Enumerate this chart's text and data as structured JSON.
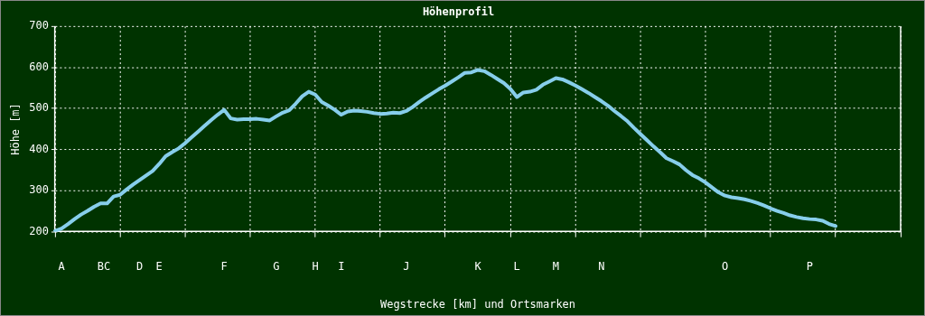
{
  "chart_data": {
    "type": "line",
    "title": "Höhenprofil",
    "xlabel": "Wegstrecke [km] und Ortsmarken",
    "ylabel": "Höhe [m]",
    "categories": [
      null,
      "A",
      null,
      null,
      null,
      null,
      null,
      "B",
      "C",
      null,
      null,
      null,
      null,
      "D",
      null,
      null,
      "E",
      null,
      null,
      null,
      null,
      null,
      null,
      null,
      null,
      null,
      "F",
      null,
      null,
      null,
      null,
      null,
      null,
      null,
      "G",
      null,
      null,
      null,
      null,
      null,
      "H",
      null,
      null,
      null,
      "I",
      null,
      null,
      null,
      null,
      null,
      null,
      null,
      null,
      null,
      "J",
      null,
      null,
      null,
      null,
      null,
      null,
      null,
      null,
      null,
      null,
      "K",
      null,
      null,
      null,
      null,
      null,
      "L",
      null,
      null,
      null,
      null,
      null,
      "M",
      null,
      null,
      null,
      null,
      null,
      null,
      "N",
      null,
      null,
      null,
      null,
      null,
      null,
      null,
      null,
      null,
      null,
      null,
      null,
      null,
      null,
      null,
      null,
      null,
      null,
      "O",
      null,
      null,
      null,
      null,
      null,
      null,
      null,
      null,
      null,
      null,
      null,
      null,
      "P",
      null,
      null,
      null,
      null,
      null,
      null,
      null,
      null,
      null,
      null,
      null,
      null,
      null,
      null
    ],
    "series": [
      {
        "color": "#87ceeb",
        "values": [
          202,
          208,
          219,
          231,
          242,
          251,
          261,
          269,
          269,
          286,
          290,
          303,
          315,
          326,
          337,
          348,
          365,
          384,
          394,
          403,
          416,
          430,
          444,
          458,
          472,
          485,
          497,
          476,
          473,
          474,
          474,
          475,
          473,
          471,
          481,
          490,
          496,
          512,
          530,
          541,
          534,
          516,
          507,
          497,
          485,
          493,
          495,
          494,
          492,
          489,
          487,
          488,
          490,
          489,
          494,
          504,
          516,
          527,
          537,
          547,
          556,
          566,
          576,
          587,
          588,
          594,
          591,
          582,
          572,
          562,
          548,
          528,
          539,
          541,
          546,
          558,
          566,
          574,
          571,
          564,
          556,
          547,
          538,
          528,
          518,
          507,
          494,
          482,
          469,
          453,
          438,
          423,
          408,
          394,
          379,
          372,
          364,
          350,
          338,
          330,
          320,
          308,
          296,
          288,
          284,
          282,
          279,
          275,
          270,
          264,
          257,
          251,
          246,
          240,
          236,
          233,
          231,
          230,
          227,
          219,
          214,
          null,
          null,
          null,
          null,
          null,
          null,
          null,
          null,
          null,
          null
        ]
      }
    ],
    "ylim": [
      200,
      700
    ],
    "yticks": [
      200,
      300,
      400,
      500,
      600,
      700
    ],
    "grid": true,
    "legend": false,
    "marker": "none",
    "line_style": "solid"
  }
}
